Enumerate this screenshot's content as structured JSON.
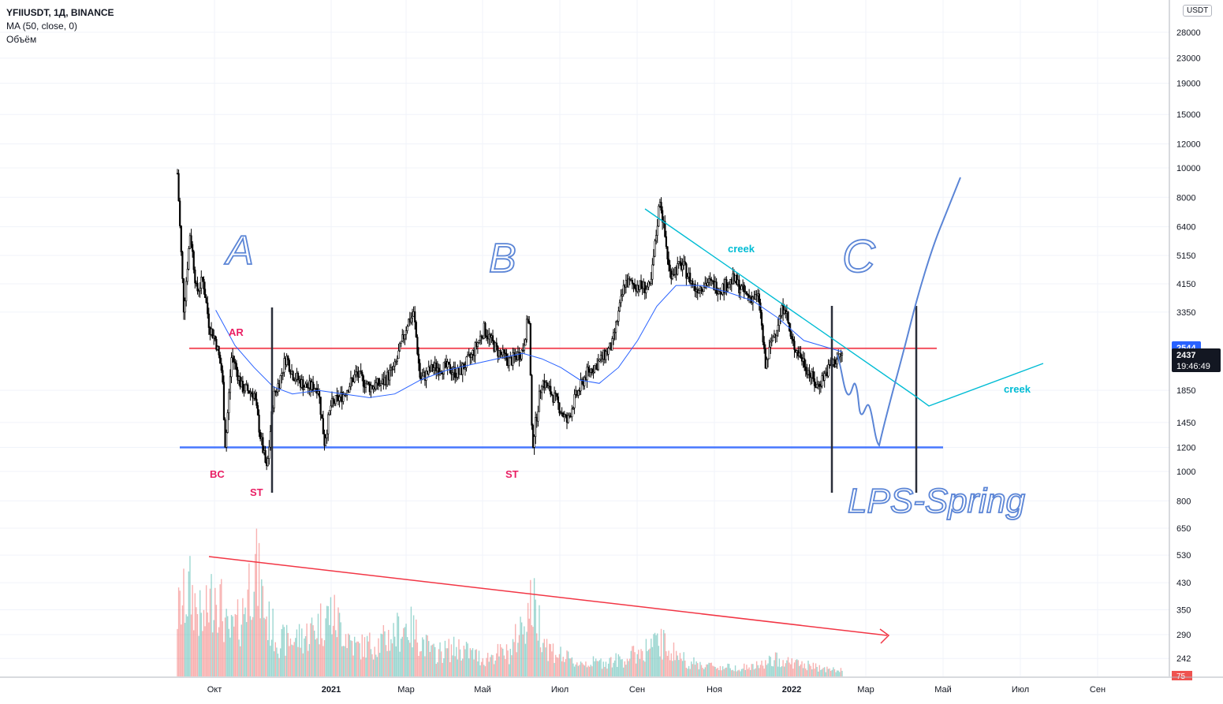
{
  "header": {
    "symbol": "YFIIUSDT, 1Д, BINANCE",
    "ma_label": "MA (50, close, 0)",
    "volume_label": "Объём",
    "currency": "USDT"
  },
  "chart_data": {
    "type": "candlestick",
    "y_scale": "log",
    "y_ticks": [
      "28000",
      "23000",
      "19000",
      "15000",
      "12000",
      "10000",
      "8000",
      "6400",
      "5150",
      "4150",
      "3350",
      "1850",
      "1450",
      "1200",
      "1000",
      "800",
      "650",
      "530",
      "430",
      "350",
      "290",
      "242"
    ],
    "y_tick_values": [
      28000,
      23000,
      19000,
      15000,
      12000,
      10000,
      8000,
      6400,
      5150,
      4150,
      3350,
      1850,
      1450,
      1200,
      1000,
      800,
      650,
      530,
      430,
      350,
      290,
      242
    ],
    "x_ticks": [
      "Окт",
      "2021",
      "Мар",
      "Май",
      "Июл",
      "Сен",
      "Ноя",
      "2022",
      "Мар",
      "Май",
      "Июл",
      "Сен"
    ],
    "price_labels": [
      {
        "text": "2544",
        "value": 2544,
        "color": "#2962ff"
      },
      {
        "text": "2437",
        "value": 2437,
        "color": "#131722"
      },
      {
        "text": "19:46:49",
        "value": 2437,
        "color": "#131722"
      }
    ],
    "volume_badge": "75",
    "colors": {
      "up": "#26a69a",
      "down": "#ef5350",
      "candle": "#000000",
      "ma": "#2962ff",
      "resistance": "#f23645",
      "support": "#2962ff",
      "creek": "#00bcd4",
      "hand": "#5b85d6",
      "annot": "#e91e63"
    },
    "price_path": [
      [
        0.0,
        9600
      ],
      [
        0.01,
        3400
      ],
      [
        0.02,
        6200
      ],
      [
        0.03,
        3900
      ],
      [
        0.04,
        4300
      ],
      [
        0.05,
        3000
      ],
      [
        0.06,
        2700
      ],
      [
        0.07,
        2100
      ],
      [
        0.075,
        1200
      ],
      [
        0.085,
        2450
      ],
      [
        0.1,
        1900
      ],
      [
        0.12,
        1800
      ],
      [
        0.13,
        1300
      ],
      [
        0.14,
        1000
      ],
      [
        0.15,
        1750
      ],
      [
        0.16,
        2000
      ],
      [
        0.17,
        2400
      ],
      [
        0.18,
        2100
      ],
      [
        0.2,
        1900
      ],
      [
        0.22,
        1900
      ],
      [
        0.23,
        1250
      ],
      [
        0.24,
        1650
      ],
      [
        0.26,
        1800
      ],
      [
        0.28,
        2100
      ],
      [
        0.3,
        1900
      ],
      [
        0.32,
        1950
      ],
      [
        0.34,
        2200
      ],
      [
        0.36,
        3100
      ],
      [
        0.37,
        3300
      ],
      [
        0.38,
        2000
      ],
      [
        0.4,
        2200
      ],
      [
        0.42,
        2200
      ],
      [
        0.44,
        2100
      ],
      [
        0.46,
        2400
      ],
      [
        0.48,
        2950
      ],
      [
        0.5,
        2500
      ],
      [
        0.52,
        2300
      ],
      [
        0.54,
        2500
      ],
      [
        0.55,
        3350
      ],
      [
        0.555,
        1200
      ],
      [
        0.57,
        2000
      ],
      [
        0.59,
        1750
      ],
      [
        0.61,
        1450
      ],
      [
        0.62,
        1700
      ],
      [
        0.64,
        2100
      ],
      [
        0.66,
        2300
      ],
      [
        0.68,
        2600
      ],
      [
        0.7,
        4200
      ],
      [
        0.72,
        4100
      ],
      [
        0.74,
        4000
      ],
      [
        0.755,
        8000
      ],
      [
        0.77,
        4500
      ],
      [
        0.79,
        4800
      ],
      [
        0.81,
        4000
      ],
      [
        0.83,
        4200
      ],
      [
        0.85,
        4000
      ],
      [
        0.87,
        4300
      ],
      [
        0.89,
        3800
      ],
      [
        0.91,
        3700
      ],
      [
        0.92,
        2200
      ],
      [
        0.93,
        2700
      ],
      [
        0.95,
        3600
      ],
      [
        0.96,
        2700
      ],
      [
        0.98,
        2300
      ],
      [
        1.0,
        1900
      ],
      [
        1.02,
        2200
      ],
      [
        1.04,
        2437
      ]
    ],
    "ma_path": [
      [
        0.06,
        3400
      ],
      [
        0.09,
        2600
      ],
      [
        0.12,
        2200
      ],
      [
        0.15,
        1900
      ],
      [
        0.18,
        1800
      ],
      [
        0.22,
        1850
      ],
      [
        0.26,
        1800
      ],
      [
        0.3,
        1750
      ],
      [
        0.34,
        1800
      ],
      [
        0.38,
        2000
      ],
      [
        0.42,
        2150
      ],
      [
        0.46,
        2250
      ],
      [
        0.5,
        2350
      ],
      [
        0.54,
        2450
      ],
      [
        0.57,
        2350
      ],
      [
        0.6,
        2200
      ],
      [
        0.63,
        2000
      ],
      [
        0.66,
        1950
      ],
      [
        0.69,
        2200
      ],
      [
        0.72,
        2700
      ],
      [
        0.75,
        3500
      ],
      [
        0.78,
        4100
      ],
      [
        0.82,
        4100
      ],
      [
        0.86,
        3900
      ],
      [
        0.9,
        3650
      ],
      [
        0.94,
        3200
      ],
      [
        0.98,
        2700
      ],
      [
        1.02,
        2550
      ],
      [
        1.04,
        2480
      ]
    ],
    "volume_path": [
      [
        0.0,
        0.55
      ],
      [
        0.02,
        0.75
      ],
      [
        0.04,
        0.45
      ],
      [
        0.06,
        0.8
      ],
      [
        0.08,
        0.35
      ],
      [
        0.1,
        0.5
      ],
      [
        0.12,
        1.0
      ],
      [
        0.14,
        0.5
      ],
      [
        0.16,
        0.3
      ],
      [
        0.2,
        0.35
      ],
      [
        0.24,
        0.55
      ],
      [
        0.28,
        0.25
      ],
      [
        0.32,
        0.3
      ],
      [
        0.36,
        0.45
      ],
      [
        0.4,
        0.2
      ],
      [
        0.44,
        0.25
      ],
      [
        0.48,
        0.15
      ],
      [
        0.5,
        0.2
      ],
      [
        0.52,
        0.2
      ],
      [
        0.555,
        0.65
      ],
      [
        0.58,
        0.25
      ],
      [
        0.62,
        0.12
      ],
      [
        0.66,
        0.12
      ],
      [
        0.7,
        0.15
      ],
      [
        0.755,
        0.3
      ],
      [
        0.8,
        0.12
      ],
      [
        0.85,
        0.08
      ],
      [
        0.9,
        0.08
      ],
      [
        0.94,
        0.15
      ],
      [
        0.98,
        0.1
      ],
      [
        1.02,
        0.06
      ],
      [
        1.04,
        0.05
      ]
    ],
    "annotations": [
      {
        "text": "AR",
        "color": "#e91e63"
      },
      {
        "text": "BC",
        "color": "#e91e63"
      },
      {
        "text": "ST",
        "color": "#e91e63"
      },
      {
        "text": "ST",
        "color": "#e91e63"
      },
      {
        "text": "creek",
        "color": "#00bcd4"
      },
      {
        "text": "creek",
        "color": "#00bcd4"
      }
    ],
    "handwritten": [
      {
        "text": "A",
        "color": "#5b85d6"
      },
      {
        "text": "B",
        "color": "#5b85d6"
      },
      {
        "text": "C",
        "color": "#5b85d6"
      },
      {
        "text": "LPS-Spring",
        "color": "#5b85d6"
      }
    ],
    "levels": {
      "resistance": 2544,
      "support": 1200
    }
  }
}
